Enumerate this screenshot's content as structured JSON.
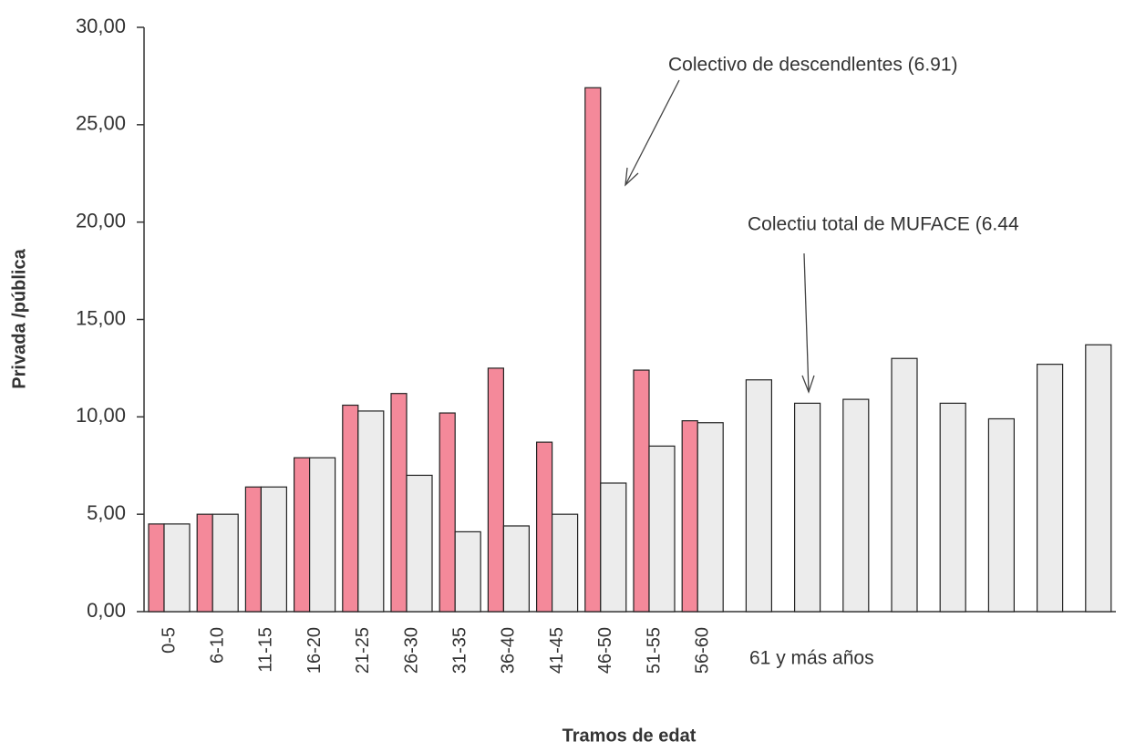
{
  "chart_data": {
    "type": "bar",
    "y_label": "Privada /pública",
    "x_label": "Tramos de edat",
    "group_label": "61 y más años",
    "categories": [
      "0-5",
      "6-10",
      "11-15",
      "16-20",
      "21-25",
      "26-30",
      "31-35",
      "36-40",
      "41-45",
      "46-50",
      "51-55",
      "56-60",
      null,
      null,
      null,
      null,
      null,
      null,
      null,
      null
    ],
    "series": [
      {
        "name": "Colectivo de descendlentes (6.91)",
        "color": "#f4899a",
        "values": [
          4.5,
          5.0,
          6.4,
          7.9,
          10.6,
          11.2,
          10.2,
          12.5,
          8.7,
          26.9,
          12.4,
          9.8,
          null,
          null,
          null,
          null,
          null,
          null,
          null,
          null
        ]
      },
      {
        "name": "Colectiu total de MUFACE (6.44",
        "color": "#ececec",
        "values": [
          4.5,
          5.0,
          6.4,
          7.9,
          10.3,
          7.0,
          4.1,
          4.4,
          5.0,
          6.6,
          8.5,
          9.7,
          11.9,
          10.7,
          10.9,
          13.0,
          10.7,
          9.9,
          12.7,
          13.7
        ]
      }
    ],
    "ylim": [
      0,
      30
    ],
    "yticks": [
      {
        "value": 0,
        "label": "0,00"
      },
      {
        "value": 5,
        "label": "5,00"
      },
      {
        "value": 10,
        "label": "10,00"
      },
      {
        "value": 15,
        "label": "15,00"
      },
      {
        "value": 20,
        "label": "20,00"
      },
      {
        "value": 25,
        "label": "25,00"
      },
      {
        "value": 30,
        "label": "30,00"
      }
    ],
    "grid": false
  }
}
